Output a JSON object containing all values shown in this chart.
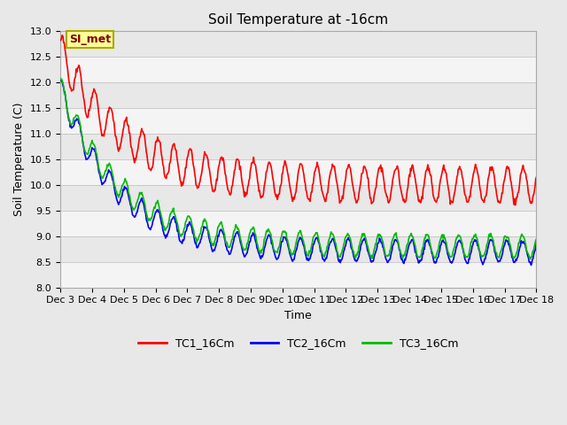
{
  "title": "Soil Temperature at -16cm",
  "ylabel": "Soil Temperature (C)",
  "xlabel": "Time",
  "ylim": [
    8.0,
    13.0
  ],
  "yticks": [
    8.0,
    8.5,
    9.0,
    9.5,
    10.0,
    10.5,
    11.0,
    11.5,
    12.0,
    12.5,
    13.0
  ],
  "xtick_labels": [
    "Dec 3",
    "Dec 4",
    "Dec 5",
    "Dec 6",
    "Dec 7",
    "Dec 8",
    "Dec 9",
    "Dec 10",
    "Dec 11",
    "Dec 12",
    "Dec 13",
    "Dec 14",
    "Dec 15",
    "Dec 16",
    "Dec 17",
    "Dec 18"
  ],
  "line_colors": [
    "#ff0000",
    "#0000ff",
    "#00bb00"
  ],
  "line_labels": [
    "TC1_16Cm",
    "TC2_16Cm",
    "TC3_16Cm"
  ],
  "legend_label": "SI_met",
  "legend_label_color": "#800000",
  "legend_bg": "#ffff99",
  "legend_border": "#aaa800",
  "bg_color": "#e8e8e8",
  "title_fontsize": 11,
  "axis_fontsize": 9,
  "tick_fontsize": 8,
  "line_width": 1.2
}
